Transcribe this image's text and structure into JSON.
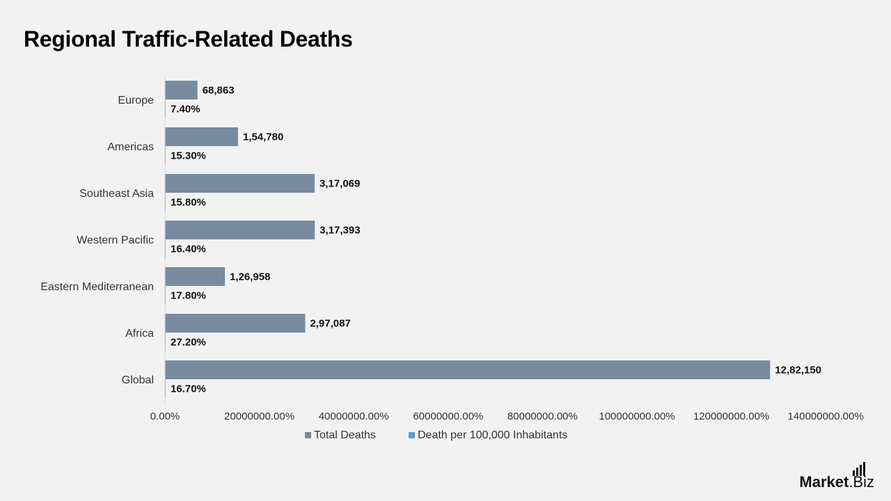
{
  "header": {
    "title": "Regional Traffic-Related Deaths"
  },
  "chart_data": {
    "type": "bar",
    "orientation": "horizontal",
    "title": "Regional Traffic-Related Deaths",
    "categories": [
      "Europe",
      "Americas",
      "Southeast Asia",
      "Western Pacific",
      "Eastern Mediterranean",
      "Africa",
      "Global"
    ],
    "series": [
      {
        "name": "Total Deaths",
        "values": [
          68863,
          154780,
          317069,
          317393,
          126958,
          297087,
          1282150
        ],
        "labels": [
          "68,863",
          "1,54,780",
          "3,17,069",
          "3,17,393",
          "1,26,958",
          "2,97,087",
          "12,82,150"
        ],
        "color": "#788ba1"
      },
      {
        "name": "Death per 100,000 Inhabitants",
        "values": [
          7.4,
          15.3,
          15.8,
          16.4,
          17.8,
          27.2,
          16.7
        ],
        "labels": [
          "7.40%",
          "15.30%",
          "15.80%",
          "16.40%",
          "17.80%",
          "27.20%",
          "16.70%"
        ],
        "color": "#5b9bd5"
      }
    ],
    "xlim": [
      0,
      1500000
    ],
    "x_ticks": [
      0,
      200000,
      400000,
      600000,
      800000,
      1000000,
      1200000,
      1400000
    ],
    "x_tick_labels": [
      "0.00%",
      "20000000.00%",
      "40000000.00%",
      "60000000.00%",
      "80000000.00%",
      "100000000.00%",
      "120000000.00%",
      "140000000.00%"
    ],
    "grid": false,
    "legend_position": "bottom"
  },
  "branding": {
    "name": "Market",
    "tld": ".Biz"
  }
}
